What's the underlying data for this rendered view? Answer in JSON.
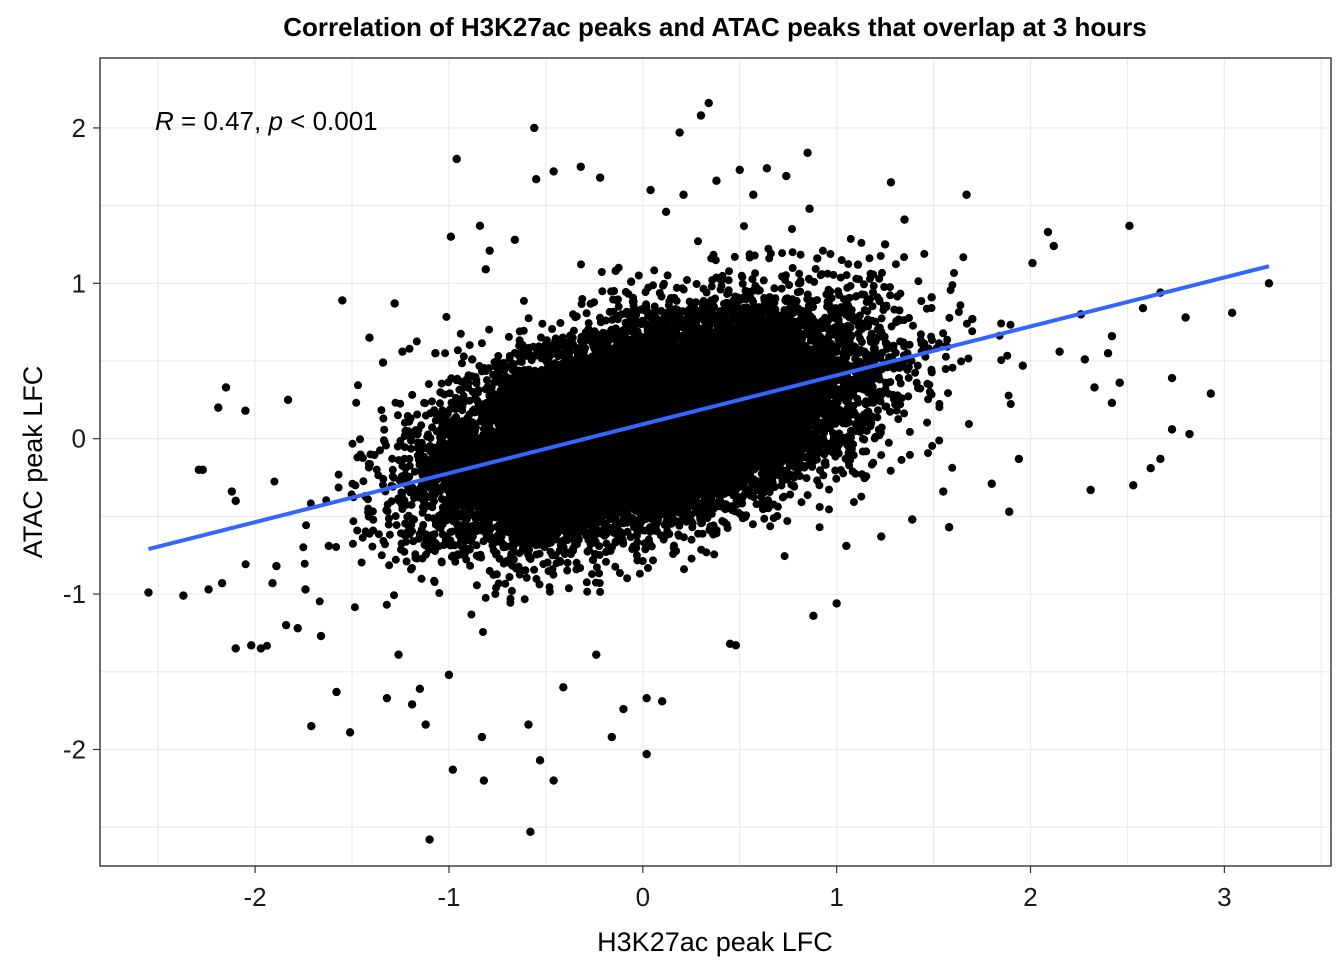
{
  "chart_data": {
    "type": "scatter",
    "title": "Correlation of H3K27ac peaks and ATAC peaks that overlap at 3 hours",
    "xlabel": "H3K27ac peak LFC",
    "ylabel": "ATAC peak LFC",
    "xlim": [
      -2.8,
      3.55
    ],
    "ylim": [
      -2.75,
      2.45
    ],
    "x_ticks": [
      -2,
      -1,
      0,
      1,
      2,
      3
    ],
    "x_tick_labels": [
      "-2",
      "-1",
      "0",
      "1",
      "2",
      "3"
    ],
    "y_ticks": [
      -2,
      -1,
      0,
      1,
      2
    ],
    "y_tick_labels": [
      "-2",
      "-1",
      "0",
      "1",
      "2"
    ],
    "grid": true,
    "point_color": "#000000",
    "annotation": {
      "r_symbol": "R",
      "r_text": " = 0.47, ",
      "p_symbol": "p",
      "p_text": " < 0.001",
      "r": 0.47,
      "p_max": 0.001
    },
    "regression_line": {
      "color": "#3366ff",
      "x": [
        -2.55,
        3.23
      ],
      "y": [
        -0.71,
        1.11
      ]
    },
    "bulk_cloud": {
      "center": [
        0.02,
        0.09
      ],
      "x_sd": 0.5,
      "y_sd": 0.33,
      "correlation": 0.47,
      "n_points_approx": 20000
    },
    "points": [
      [
        -2.55,
        -0.99
      ],
      [
        -2.37,
        -1.01
      ],
      [
        -2.29,
        -0.2
      ],
      [
        -2.27,
        -0.2
      ],
      [
        -2.24,
        -0.97
      ],
      [
        -2.19,
        0.2
      ],
      [
        -2.17,
        -0.93
      ],
      [
        -2.15,
        0.33
      ],
      [
        -2.12,
        -0.34
      ],
      [
        -2.1,
        -0.4
      ],
      [
        -2.1,
        -1.35
      ],
      [
        -2.02,
        -1.33
      ],
      [
        -1.97,
        -1.35
      ],
      [
        -1.91,
        -0.93
      ],
      [
        -1.89,
        -0.82
      ],
      [
        -1.84,
        -1.2
      ],
      [
        -1.74,
        -0.97
      ],
      [
        -1.71,
        -1.85
      ],
      [
        -1.66,
        -1.27
      ],
      [
        -1.62,
        -0.69
      ],
      [
        -1.58,
        -1.63
      ],
      [
        -1.55,
        0.89
      ],
      [
        -1.51,
        -1.89
      ],
      [
        -1.41,
        0.65
      ],
      [
        -1.34,
        0.49
      ],
      [
        -1.32,
        -1.67
      ],
      [
        -1.28,
        0.87
      ],
      [
        -1.24,
        0.56
      ],
      [
        -1.19,
        -1.71
      ],
      [
        -1.15,
        -1.61
      ],
      [
        -1.12,
        -1.84
      ],
      [
        -1.1,
        -2.58
      ],
      [
        -1.07,
        0.55
      ],
      [
        -1.0,
        -1.52
      ],
      [
        -0.98,
        -2.13
      ],
      [
        -0.99,
        1.3
      ],
      [
        -0.96,
        1.8
      ],
      [
        -0.88,
        0.51
      ],
      [
        -0.84,
        1.37
      ],
      [
        -0.82,
        -2.2
      ],
      [
        -0.83,
        -1.92
      ],
      [
        -0.81,
        1.09
      ],
      [
        -0.79,
        1.21
      ],
      [
        -0.66,
        1.28
      ],
      [
        -0.59,
        -1.84
      ],
      [
        -0.58,
        -2.53
      ],
      [
        -0.56,
        2.0
      ],
      [
        -0.55,
        1.67
      ],
      [
        -0.53,
        -2.07
      ],
      [
        -0.46,
        1.72
      ],
      [
        -0.41,
        -1.6
      ],
      [
        -0.32,
        1.75
      ],
      [
        -0.22,
        1.68
      ],
      [
        -0.24,
        -1.39
      ],
      [
        -0.16,
        -1.92
      ],
      [
        -0.14,
        1.08
      ],
      [
        -0.06,
        1.01
      ],
      [
        0.02,
        -2.03
      ],
      [
        0.02,
        -1.67
      ],
      [
        0.04,
        1.6
      ],
      [
        0.1,
        -1.69
      ],
      [
        0.12,
        1.46
      ],
      [
        0.21,
        1.57
      ],
      [
        0.19,
        1.97
      ],
      [
        0.3,
        2.08
      ],
      [
        0.34,
        2.16
      ],
      [
        0.38,
        1.66
      ],
      [
        0.45,
        -1.32
      ],
      [
        0.48,
        -1.33
      ],
      [
        0.5,
        1.73
      ],
      [
        0.64,
        1.74
      ],
      [
        0.74,
        1.69
      ],
      [
        0.88,
        -1.14
      ],
      [
        0.9,
        1.16
      ],
      [
        0.85,
        1.84
      ],
      [
        1.0,
        -1.06
      ],
      [
        1.11,
        1.12
      ],
      [
        1.25,
        1.25
      ],
      [
        1.28,
        1.65
      ],
      [
        1.35,
        1.41
      ],
      [
        1.55,
        -0.34
      ],
      [
        1.58,
        -0.57
      ],
      [
        1.67,
        1.57
      ],
      [
        1.8,
        -0.29
      ],
      [
        1.89,
        -0.47
      ],
      [
        1.96,
        0.47
      ],
      [
        2.01,
        1.13
      ],
      [
        2.09,
        1.33
      ],
      [
        2.12,
        1.24
      ],
      [
        2.15,
        0.56
      ],
      [
        2.28,
        0.51
      ],
      [
        2.31,
        -0.33
      ],
      [
        2.33,
        0.33
      ],
      [
        2.4,
        0.55
      ],
      [
        2.42,
        0.23
      ],
      [
        2.46,
        0.36
      ],
      [
        2.51,
        1.37
      ],
      [
        2.53,
        -0.3
      ],
      [
        2.58,
        0.84
      ],
      [
        2.62,
        -0.19
      ],
      [
        2.67,
        -0.13
      ],
      [
        2.67,
        0.94
      ],
      [
        2.73,
        0.39
      ],
      [
        2.8,
        0.78
      ],
      [
        2.82,
        0.03
      ],
      [
        2.93,
        0.29
      ],
      [
        3.04,
        0.81
      ],
      [
        3.23,
        1.0
      ],
      [
        2.73,
        0.06
      ],
      [
        2.42,
        0.66
      ],
      [
        1.23,
        -0.63
      ],
      [
        1.05,
        -0.69
      ],
      [
        1.39,
        -0.52
      ],
      [
        1.49,
        0.91
      ],
      [
        -1.78,
        -1.22
      ],
      [
        -1.26,
        -1.39
      ],
      [
        -0.46,
        -2.2
      ],
      [
        -0.1,
        -1.74
      ],
      [
        0.86,
        1.48
      ],
      [
        0.57,
        1.57
      ],
      [
        1.7,
        0.77
      ],
      [
        1.94,
        -0.13
      ],
      [
        2.26,
        0.8
      ],
      [
        -2.05,
        0.18
      ],
      [
        -1.83,
        0.25
      ]
    ]
  }
}
